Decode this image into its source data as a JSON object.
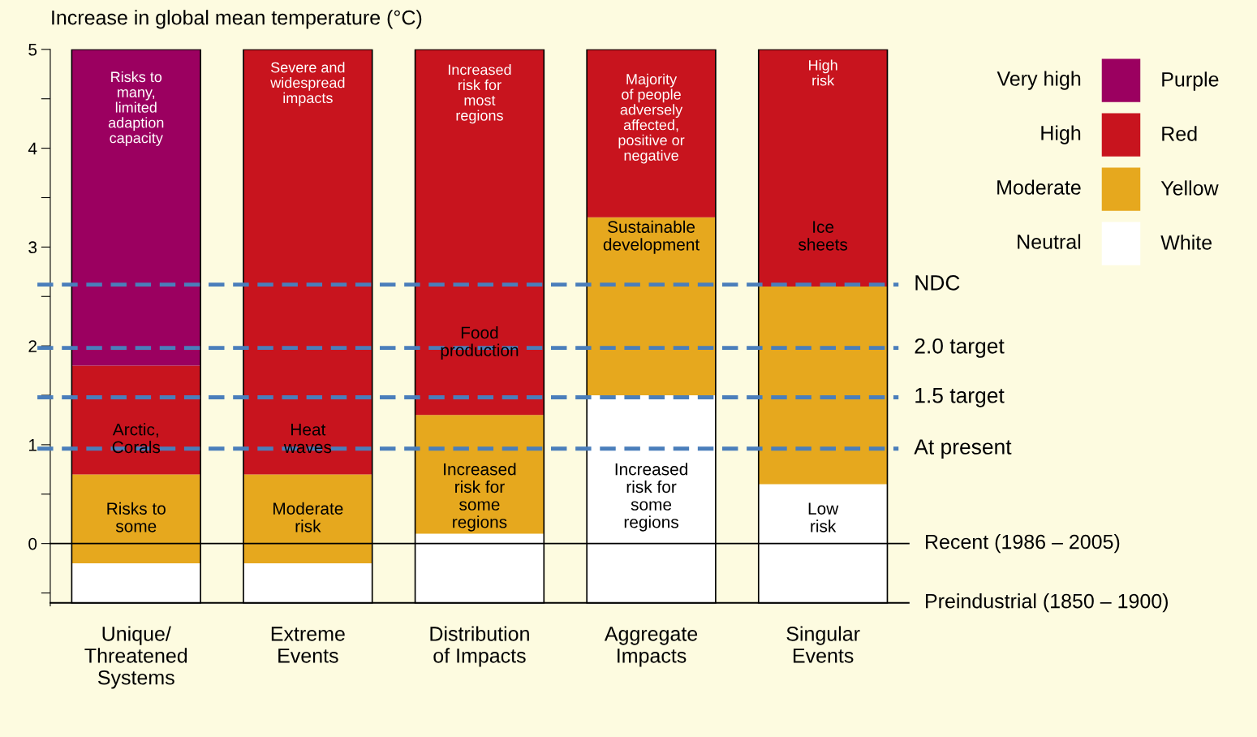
{
  "chart_data": {
    "type": "bar",
    "title": "Increase in global mean temperature (°C)",
    "categories": [
      "Unique/\nThreatened\nSystems",
      "Extreme\nEvents",
      "Distribution\nof Impacts",
      "Aggregate\nImpacts",
      "Singular\nEvents"
    ],
    "series": [
      {
        "name": "White",
        "color": "#ffffff",
        "base": [
          -0.6,
          -0.6,
          -0.6,
          -0.6,
          -0.6
        ],
        "values": [
          0.4,
          0.4,
          0.7,
          2.1,
          1.2
        ]
      },
      {
        "name": "Yellow",
        "color": "#e6a81e",
        "base": [
          -0.2,
          -0.2,
          0.1,
          1.5,
          0.6
        ],
        "values": [
          0.9,
          0.9,
          1.2,
          1.8,
          2.0
        ]
      },
      {
        "name": "Red",
        "color": "#c8141e",
        "base": [
          0.7,
          0.7,
          1.3,
          3.3,
          2.6
        ],
        "values": [
          1.1,
          4.3,
          3.7,
          1.7,
          2.4
        ]
      },
      {
        "name": "Purple",
        "color": "#9b0060",
        "base": [
          1.8,
          null,
          null,
          null,
          null
        ],
        "values": [
          3.2,
          null,
          null,
          null,
          null
        ]
      }
    ],
    "ylim": [
      -0.63,
      5
    ],
    "yticks": [
      {
        "value": -0.5,
        "label": null
      },
      0,
      {
        "value": 0.5,
        "label": null
      },
      1,
      {
        "value": 1.5,
        "label": null
      },
      2,
      {
        "value": 2.5,
        "label": null
      },
      3,
      {
        "value": 3.5,
        "label": null
      },
      4,
      {
        "value": 4.5,
        "label": null
      },
      5
    ],
    "ref_lines": [
      {
        "axis": "y",
        "value": 0.96,
        "label": "At present",
        "color": "#4a7ebb",
        "line_style": "dashed"
      },
      {
        "axis": "y",
        "value": 1.48,
        "label": "1.5 target",
        "color": "#4a7ebb",
        "line_style": "dashed"
      },
      {
        "axis": "y",
        "value": 1.98,
        "label": "2.0 target",
        "color": "#4a7ebb",
        "line_style": "dashed"
      },
      {
        "axis": "y",
        "value": 2.62,
        "label": "NDC",
        "color": "#4a7ebb",
        "line_style": "dashed"
      },
      {
        "axis": "y",
        "value": 0,
        "label": "Recent (1986 – 2005)",
        "color": "#000000",
        "line_style": "solid"
      },
      {
        "axis": "y",
        "value": -0.6,
        "label": "Preindustrial (1850 – 1900)",
        "color": "#000000",
        "line_style": "solid"
      }
    ],
    "legend": "right",
    "annotations": [
      "Risks to\nmany,\nlimited\nadaption\ncapacity",
      "Arctic,\nCorals",
      "Risks to\nsome",
      "Severe and\nwidespread\nimpacts",
      "Heat\nwaves",
      "Moderate\nrisk",
      "Increased\nrisk for\nmost\nregions",
      "Food\nproduction",
      "Increased\nrisk for\nsome\nregions",
      "Majority\nof people\nadversely\naffected,\npositive or\nnegative",
      "Sustainable\ndevelopment",
      "Increased\nrisk for\nsome\nregions",
      "High\nrisk",
      "Ice\nsheets",
      "Low\nrisk",
      "Neutral",
      "Moderate",
      "High",
      "Very high"
    ]
  }
}
